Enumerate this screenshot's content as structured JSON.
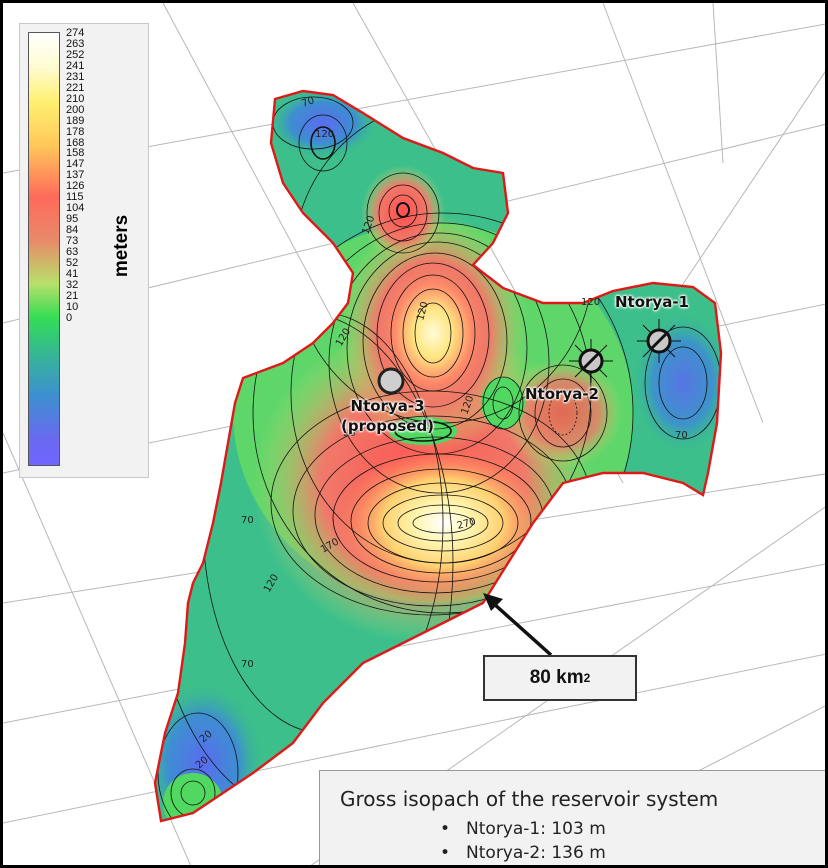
{
  "legend": {
    "unit": "meters",
    "ticks": [
      "274",
      "263",
      "252",
      "241",
      "231",
      "221",
      "210",
      "200",
      "189",
      "178",
      "168",
      "158",
      "147",
      "137",
      "126",
      "115",
      "104",
      "95",
      "84",
      "73",
      "63",
      "52",
      "41",
      "32",
      "21",
      "10",
      "0"
    ]
  },
  "contour_labels": [
    "70",
    "120",
    "120",
    "120",
    "120",
    "120",
    "120",
    "70",
    "70",
    "270",
    "170",
    "120",
    "70",
    "20",
    "20",
    "20"
  ],
  "wells": [
    {
      "name": "Ntorya-1",
      "status": "drilled"
    },
    {
      "name": "Ntorya-2",
      "status": "drilled"
    },
    {
      "name": "Ntorya-3\n(proposed)",
      "status": "proposed"
    }
  ],
  "callout": {
    "value": "80 km",
    "superscript": "2"
  },
  "note": {
    "title": "Gross isopach of the reservoir system",
    "items": [
      "Ntorya-1: 103 m",
      "Ntorya-2: 136 m"
    ]
  },
  "colors": {
    "outline": "#e01818",
    "contour": "#111111",
    "seismic_lines": "#b8b8b8"
  }
}
